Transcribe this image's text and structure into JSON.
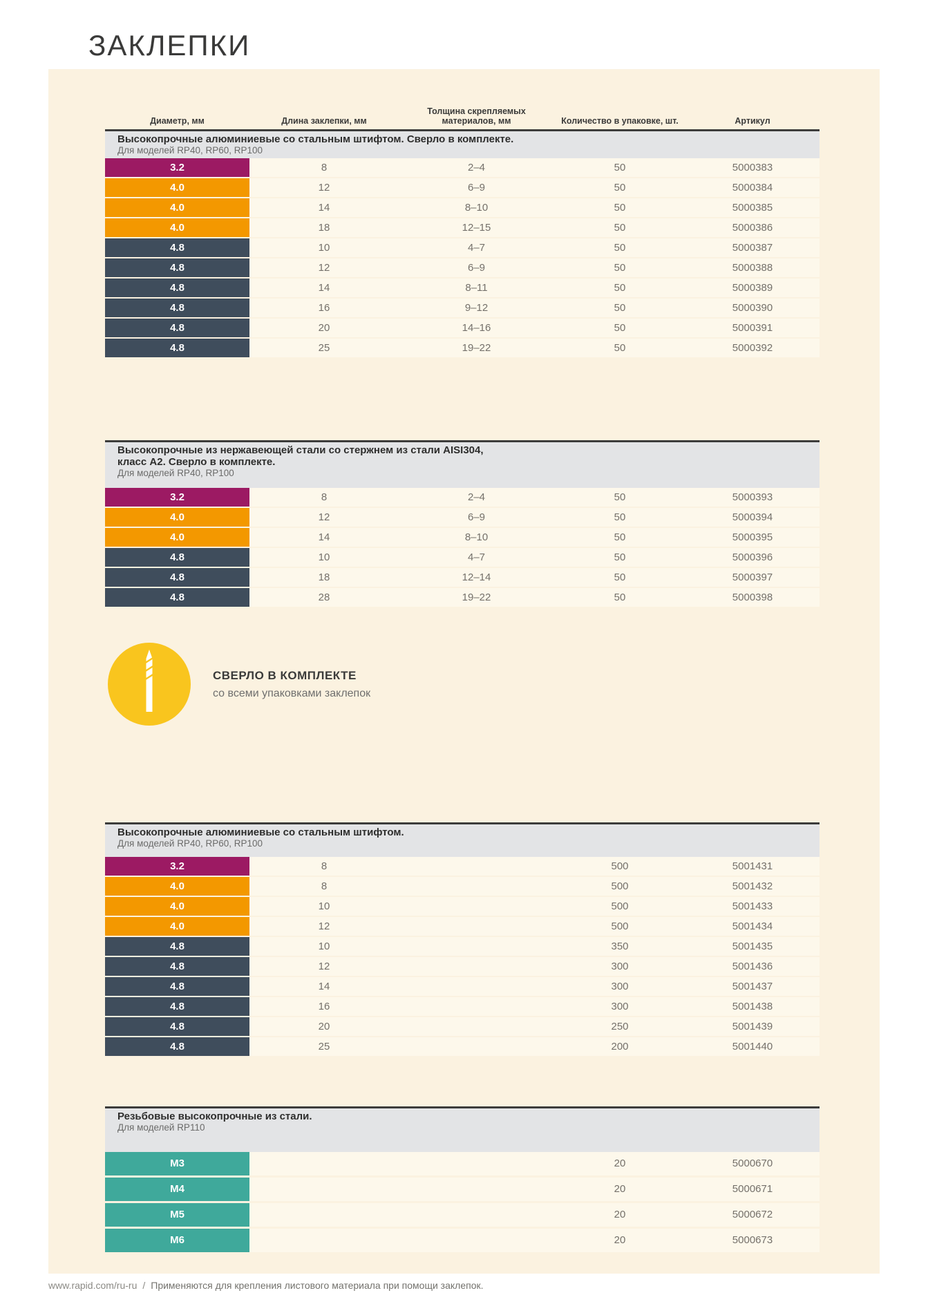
{
  "page": {
    "title": "ЗАКЛЕПКИ",
    "footer": {
      "url": "www.rapid.com/ru-ru",
      "separator": "/",
      "note": "Применяются для крепления листового материала при помощи заклепок."
    }
  },
  "colors": {
    "magenta": "#9C1A63",
    "orange": "#F39800",
    "slate": "#3F4D5C",
    "teal": "#3FA99B",
    "accent_yellow": "#F9C51E",
    "panel_bg": "#FBF2E0",
    "section_header_bg": "#E3E4E6"
  },
  "callout": {
    "icon": "drill-bit-icon",
    "title": "СВЕРЛО В КОМПЛЕКТЕ",
    "subtitle": "со всеми упаковками заклепок"
  },
  "table": {
    "columns": [
      "Диаметр, мм",
      "Длина заклепки, мм",
      "Толщина скрепляемых\nматериалов, мм",
      "Количество в упаковке, шт.",
      "Артикул"
    ],
    "sections": [
      {
        "title": "Высокопрочные алюминиевые со стальным штифтом. Сверло в комплекте.",
        "models": "Для моделей RP40, RP60, RP100",
        "rows": [
          {
            "diameter": "3.2",
            "color": "magenta",
            "length": "8",
            "thickness": "2–4",
            "qty": "50",
            "sku": "5000383"
          },
          {
            "diameter": "4.0",
            "color": "orange",
            "length": "12",
            "thickness": "6–9",
            "qty": "50",
            "sku": "5000384"
          },
          {
            "diameter": "4.0",
            "color": "orange",
            "length": "14",
            "thickness": "8–10",
            "qty": "50",
            "sku": "5000385"
          },
          {
            "diameter": "4.0",
            "color": "orange",
            "length": "18",
            "thickness": "12–15",
            "qty": "50",
            "sku": "5000386"
          },
          {
            "diameter": "4.8",
            "color": "slate",
            "length": "10",
            "thickness": "4–7",
            "qty": "50",
            "sku": "5000387"
          },
          {
            "diameter": "4.8",
            "color": "slate",
            "length": "12",
            "thickness": "6–9",
            "qty": "50",
            "sku": "5000388"
          },
          {
            "diameter": "4.8",
            "color": "slate",
            "length": "14",
            "thickness": "8–11",
            "qty": "50",
            "sku": "5000389"
          },
          {
            "diameter": "4.8",
            "color": "slate",
            "length": "16",
            "thickness": "9–12",
            "qty": "50",
            "sku": "5000390"
          },
          {
            "diameter": "4.8",
            "color": "slate",
            "length": "20",
            "thickness": "14–16",
            "qty": "50",
            "sku": "5000391"
          },
          {
            "diameter": "4.8",
            "color": "slate",
            "length": "25",
            "thickness": "19–22",
            "qty": "50",
            "sku": "5000392"
          }
        ]
      },
      {
        "title": "Высокопрочные из нержавеющей стали со стержнем из стали AISI304,\nкласс А2. Сверло в комплекте.",
        "models": "Для моделей RP40, RP100",
        "rows": [
          {
            "diameter": "3.2",
            "color": "magenta",
            "length": "8",
            "thickness": "2–4",
            "qty": "50",
            "sku": "5000393"
          },
          {
            "diameter": "4.0",
            "color": "orange",
            "length": "12",
            "thickness": "6–9",
            "qty": "50",
            "sku": "5000394"
          },
          {
            "diameter": "4.0",
            "color": "orange",
            "length": "14",
            "thickness": "8–10",
            "qty": "50",
            "sku": "5000395"
          },
          {
            "diameter": "4.8",
            "color": "slate",
            "length": "10",
            "thickness": "4–7",
            "qty": "50",
            "sku": "5000396"
          },
          {
            "diameter": "4.8",
            "color": "slate",
            "length": "18",
            "thickness": "12–14",
            "qty": "50",
            "sku": "5000397"
          },
          {
            "diameter": "4.8",
            "color": "slate",
            "length": "28",
            "thickness": "19–22",
            "qty": "50",
            "sku": "5000398"
          }
        ]
      },
      {
        "title": "Высокопрочные алюминиевые со стальным штифтом.",
        "models": "Для моделей RP40, RP60, RP100",
        "rows": [
          {
            "diameter": "3.2",
            "color": "magenta",
            "length": "8",
            "thickness": "",
            "qty": "500",
            "sku": "5001431"
          },
          {
            "diameter": "4.0",
            "color": "orange",
            "length": "8",
            "thickness": "",
            "qty": "500",
            "sku": "5001432"
          },
          {
            "diameter": "4.0",
            "color": "orange",
            "length": "10",
            "thickness": "",
            "qty": "500",
            "sku": "5001433"
          },
          {
            "diameter": "4.0",
            "color": "orange",
            "length": "12",
            "thickness": "",
            "qty": "500",
            "sku": "5001434"
          },
          {
            "diameter": "4.8",
            "color": "slate",
            "length": "10",
            "thickness": "",
            "qty": "350",
            "sku": "5001435"
          },
          {
            "diameter": "4.8",
            "color": "slate",
            "length": "12",
            "thickness": "",
            "qty": "300",
            "sku": "5001436"
          },
          {
            "diameter": "4.8",
            "color": "slate",
            "length": "14",
            "thickness": "",
            "qty": "300",
            "sku": "5001437"
          },
          {
            "diameter": "4.8",
            "color": "slate",
            "length": "16",
            "thickness": "",
            "qty": "300",
            "sku": "5001438"
          },
          {
            "diameter": "4.8",
            "color": "slate",
            "length": "20",
            "thickness": "",
            "qty": "250",
            "sku": "5001439"
          },
          {
            "diameter": "4.8",
            "color": "slate",
            "length": "25",
            "thickness": "",
            "qty": "200",
            "sku": "5001440"
          }
        ]
      },
      {
        "title": "Резьбовые высокопрочные из стали.",
        "models": "Для моделей RP110",
        "rows": [
          {
            "diameter": "M3",
            "color": "teal",
            "length": "",
            "thickness": "",
            "qty": "20",
            "sku": "5000670"
          },
          {
            "diameter": "M4",
            "color": "teal",
            "length": "",
            "thickness": "",
            "qty": "20",
            "sku": "5000671"
          },
          {
            "diameter": "M5",
            "color": "teal",
            "length": "",
            "thickness": "",
            "qty": "20",
            "sku": "5000672"
          },
          {
            "diameter": "M6",
            "color": "teal",
            "length": "",
            "thickness": "",
            "qty": "20",
            "sku": "5000673"
          }
        ]
      }
    ]
  }
}
